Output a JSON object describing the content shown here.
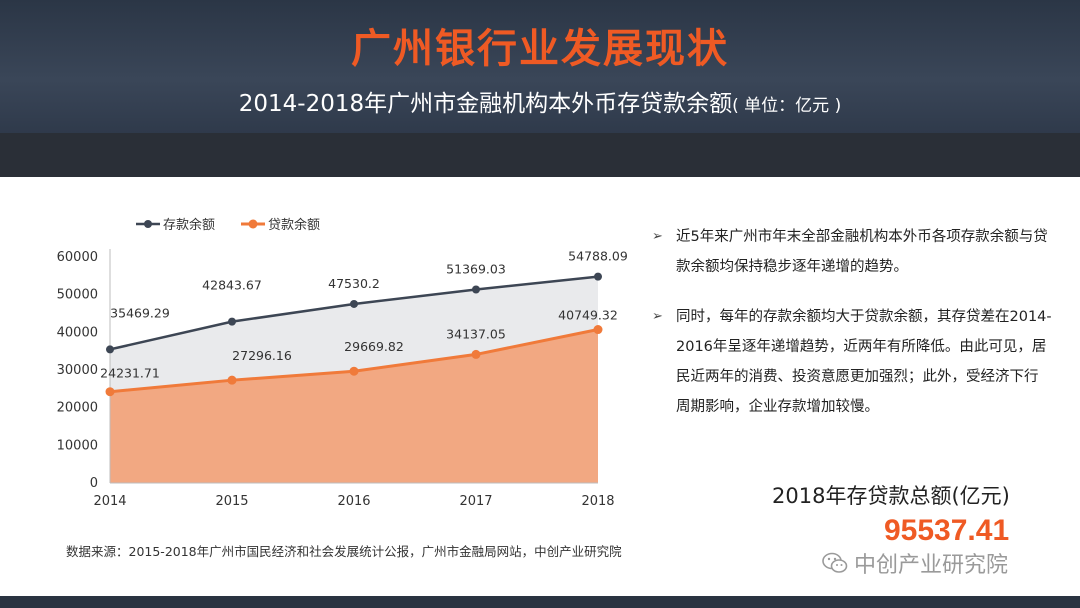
{
  "header": {
    "title": "广州银行业发展现状",
    "subtitle": "2014-2018年广州市金融机构本外币存贷款余额",
    "unit": "( 单位：亿元 )"
  },
  "chart_data": {
    "type": "area",
    "categories": [
      "2014",
      "2015",
      "2016",
      "2017",
      "2018"
    ],
    "series": [
      {
        "name": "存款余额",
        "values": [
          35469.29,
          42843.67,
          47530.2,
          51369.03,
          54788.09
        ],
        "color": "#3d4654",
        "labels": [
          "35469.29",
          "42843.67",
          "47530.2",
          "51369.03",
          "54788.09"
        ]
      },
      {
        "name": "贷款余额",
        "values": [
          24231.71,
          27296.16,
          29669.82,
          34137.05,
          40749.32
        ],
        "color": "#f07a3a",
        "labels": [
          "24231.71",
          "27296.16",
          "29669.82",
          "34137.05",
          "40749.32"
        ]
      }
    ],
    "y_ticks": [
      "0",
      "10000",
      "20000",
      "30000",
      "40000",
      "50000",
      "60000"
    ],
    "ylim": [
      0,
      60000
    ],
    "legend_position": "top-left",
    "grid": false,
    "colors": {
      "deposit_fill": "#e9eaec",
      "loan_fill": "#f2a882",
      "axis": "#bdbdbd"
    }
  },
  "notes": [
    {
      "bullet": "➢",
      "text": "近5年来广州市年末全部金融机构本外币各项存款余额与贷款余额均保持稳步逐年递增的趋势。"
    },
    {
      "bullet": "➢",
      "text": "同时，每年的存款余额均大于贷款余额，其存贷差在2014-2016年呈逐年递增趋势，近两年有所降低。由此可见，居民近两年的消费、投资意愿更加强烈；此外，受经济下行周期影响，企业存款增加较慢。"
    }
  ],
  "total": {
    "label": "2018年存贷款总额(亿元)",
    "value": "95537.41"
  },
  "source": "数据来源：2015-2018年广州市国民经济和社会发展统计公报，广州市金融局网站，中创产业研究院",
  "watermark": {
    "text": "中创产业研究院",
    "icon": "wechat-icon"
  }
}
